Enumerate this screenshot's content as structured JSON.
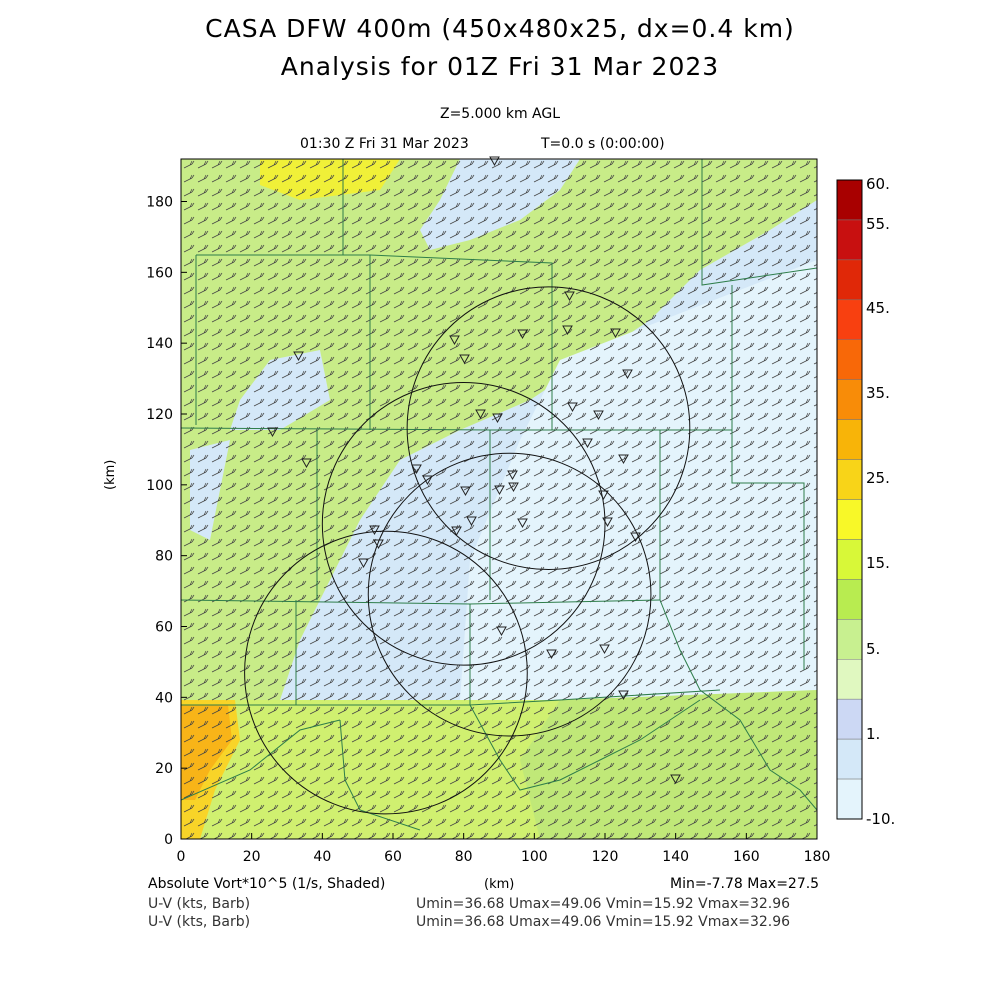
{
  "header": {
    "title": "CASA DFW 400m (450x480x25, dx=0.4 km)",
    "subtitle": "Analysis for 01Z Fri 31 Mar 2023",
    "level": "Z=5.000 km AGL",
    "valid_time": "01:30 Z Fri 31 Mar 2023",
    "time_info": "T=0.0 s (0:00:00)"
  },
  "axes": {
    "xlabel": "(km)",
    "ylabel": "(km)",
    "xticks": [
      "0",
      "20",
      "40",
      "60",
      "80",
      "100",
      "120",
      "140",
      "160",
      "180"
    ],
    "yticks": [
      "0",
      "20",
      "40",
      "60",
      "80",
      "100",
      "120",
      "140",
      "160",
      "180"
    ],
    "xlim": [
      0,
      180
    ],
    "ylim": [
      0,
      192
    ]
  },
  "colorbar": {
    "labels": [
      "60.",
      "55.",
      "45.",
      "35.",
      "25.",
      "15.",
      "5.",
      "1.",
      "-10."
    ],
    "colors": [
      "#a80000",
      "#c81010",
      "#e02808",
      "#f84010",
      "#f86808",
      "#f88c08",
      "#f8b408",
      "#f8d418",
      "#f8f828",
      "#d8f838",
      "#b8ec50",
      "#c8f090",
      "#e0f8c0",
      "#ccd8f4",
      "#d4e8f8",
      "#e4f4fc"
    ]
  },
  "footer": {
    "field1_label": "Absolute Vort*10^5 (1/s, Shaded)",
    "field1_range": "Min=-7.78 Max=27.5",
    "field2_label": "U-V (kts, Barb)",
    "field2_range": "Umin=36.68 Umax=49.06 Vmin=15.92 Vmax=32.96",
    "field3_label": "U-V (kts, Barb)",
    "field3_range": "Umin=36.68 Umax=49.06 Vmin=15.92 Vmax=32.96"
  },
  "map_data": {
    "radar_rings": [
      {
        "x": 104,
        "y": 116,
        "r": 40
      },
      {
        "x": 80,
        "y": 89,
        "r": 40
      },
      {
        "x": 93,
        "y": 69,
        "r": 40
      },
      {
        "x": 58,
        "y": 47,
        "r": 40
      }
    ]
  }
}
